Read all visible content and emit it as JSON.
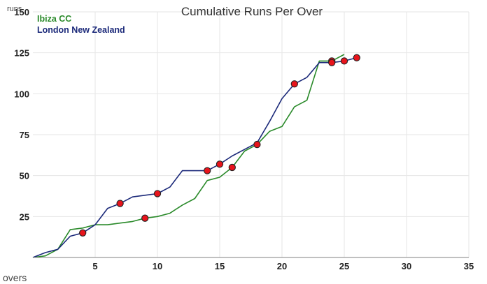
{
  "chart_data": {
    "type": "line",
    "title": "Cumulative Runs Per Over",
    "xlabel": "overs",
    "ylabel": "runs",
    "xlim": [
      0,
      35
    ],
    "ylim": [
      0,
      150
    ],
    "x_ticks": [
      5,
      10,
      15,
      20,
      25,
      30,
      35
    ],
    "y_ticks": [
      25,
      50,
      75,
      100,
      125,
      150
    ],
    "grid": true,
    "legend_position": "top-left",
    "series": [
      {
        "name": "Ibiza CC",
        "color": "#2a8a2a",
        "x": [
          0,
          1,
          2,
          3,
          4,
          5,
          6,
          7,
          8,
          9,
          10,
          11,
          12,
          13,
          14,
          15,
          16,
          17,
          18,
          19,
          20,
          21,
          22,
          23,
          24,
          25
        ],
        "y": [
          0,
          1,
          5,
          17,
          18,
          20,
          20,
          21,
          22,
          24,
          25,
          27,
          32,
          36,
          47,
          49,
          55,
          65,
          69,
          77,
          80,
          92,
          96,
          120,
          120,
          124
        ],
        "wickets": [
          [
            9,
            24
          ],
          [
            16,
            55
          ],
          [
            18,
            69
          ],
          [
            24,
            120
          ]
        ]
      },
      {
        "name": "London New Zealand",
        "color": "#1c2a7a",
        "x": [
          0,
          1,
          2,
          3,
          4,
          5,
          6,
          7,
          8,
          9,
          10,
          11,
          12,
          13,
          14,
          15,
          16,
          17,
          18,
          19,
          20,
          21,
          22,
          23,
          24,
          25,
          26
        ],
        "y": [
          0,
          3,
          5,
          13,
          15,
          20,
          30,
          33,
          37,
          38,
          39,
          43,
          53,
          53,
          53,
          57,
          62,
          66,
          70,
          83,
          97,
          106,
          110,
          119,
          119,
          120,
          122
        ],
        "wickets": [
          [
            4,
            15
          ],
          [
            7,
            33
          ],
          [
            10,
            39
          ],
          [
            14,
            53
          ],
          [
            15,
            57
          ],
          [
            21,
            106
          ],
          [
            24,
            119
          ],
          [
            25,
            120
          ],
          [
            26,
            122
          ]
        ]
      }
    ],
    "marker_color": "#e8141c"
  }
}
